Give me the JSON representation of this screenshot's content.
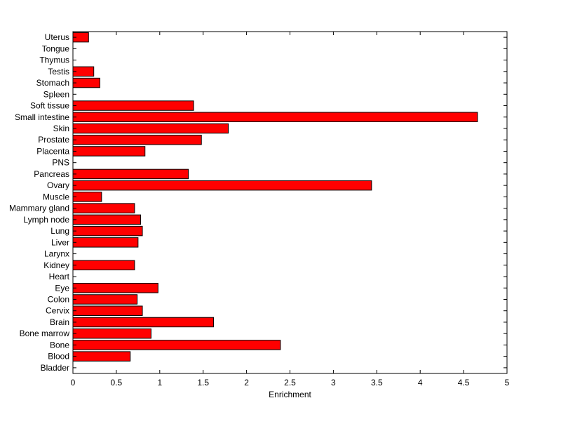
{
  "chart_data": {
    "type": "bar",
    "orientation": "horizontal",
    "xlabel": "Enrichment",
    "xlim": [
      0,
      5
    ],
    "xticks": [
      "0",
      "0.5",
      "1",
      "1.5",
      "2",
      "2.5",
      "3",
      "3.5",
      "4",
      "4.5",
      "5"
    ],
    "bar_color": "#ff0000",
    "categories": [
      "Uterus",
      "Tongue",
      "Thymus",
      "Testis",
      "Stomach",
      "Spleen",
      "Soft tissue",
      "Small intestine",
      "Skin",
      "Prostate",
      "Placenta",
      "PNS",
      "Pancreas",
      "Ovary",
      "Muscle",
      "Mammary gland",
      "Lymph node",
      "Lung",
      "Liver",
      "Larynx",
      "Kidney",
      "Heart",
      "Eye",
      "Colon",
      "Cervix",
      "Brain",
      "Bone marrow",
      "Bone",
      "Blood",
      "Bladder"
    ],
    "values": [
      0.18,
      0,
      0,
      0.24,
      0.31,
      0,
      1.39,
      4.66,
      1.79,
      1.48,
      0.83,
      0,
      1.33,
      3.44,
      0.33,
      0.71,
      0.78,
      0.8,
      0.75,
      0,
      0.71,
      0,
      0.98,
      0.74,
      0.8,
      1.62,
      0.9,
      2.39,
      0.66,
      0
    ]
  }
}
